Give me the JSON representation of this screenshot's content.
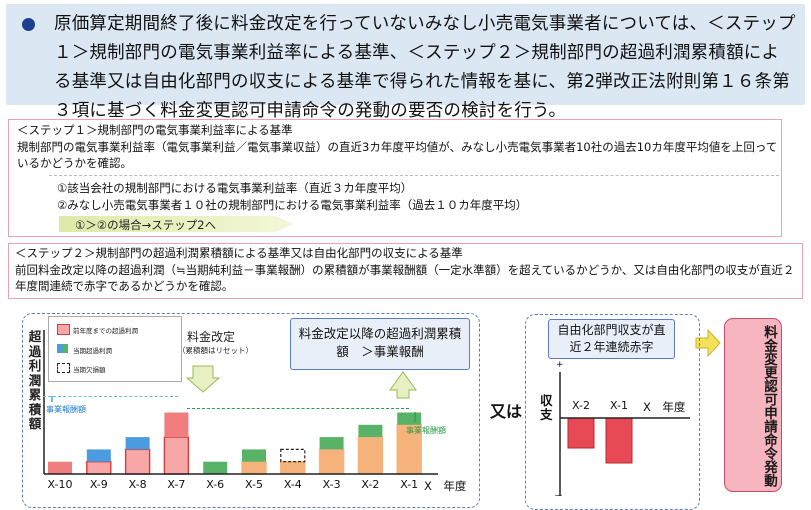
{
  "header": {
    "text": "原価算定期間終了後に料金改定を行っていないみなし小売電気事業者については、＜ステップ１＞規制部門の電気事業利益率による基準、＜ステップ２＞規制部門の超過利潤累積額による基準又は自由化部門の収支による基準で得られた情報を基に、第2弾改正法附則第１６条第３項に基づく料金変更認可申請命令の発動の要否の検討を行う。"
  },
  "step1": {
    "title": "＜ステップ１＞規制部門の電気事業利益率による基準",
    "desc": "規制部門の電気事業利益率（電気事業利益／電気事業収益）の直近3カ年度平均値が、みなし小売電気事業者10社の過去10カ年度平均値を上回っているかどうかを確認。",
    "item1": "①該当会社の規制部門における電気事業利益率（直近３カ年度平均）",
    "item2": "②みなし小売電気事業者１０社の規制部門における電気事業利益率（過去１０カ年度平均）",
    "arrow": "①＞②の場合→ステップ2へ"
  },
  "step2": {
    "title": "＜ステップ２＞規制部門の超過利潤累積額による基準又は自由化部門の収支による基準",
    "desc": "前回料金改定以降の超過利潤（≒当期純利益－事業報酬）の累積額が事業報酬額（一定水準額）を超えているかどうか、又は自由化部門の収支が直近２年度間連続で赤字であるかどうかを確認。"
  },
  "chart_left": {
    "ylabel": "超過利潤累積額",
    "legend": [
      "前年度までの超過利潤",
      "当期超過利潤",
      "当期欠損額"
    ],
    "reward_label_left": "事業報酬額",
    "reward_label_right": "事業報酬額",
    "revision_label": "料金改定",
    "revision_sub": "（累積額はリセット）",
    "callout": "料金改定以降の超過利潤累積額　＞事業報酬",
    "xaxis_suffix": "X　年度",
    "categories": [
      "X-10",
      "X-9",
      "X-8",
      "X-7",
      "X-6",
      "X-5",
      "X-4",
      "X-3",
      "X-2",
      "X-1"
    ]
  },
  "or_label": "又は",
  "chart_right": {
    "callout": "自由化部門収支が直近２年連続赤字",
    "ylabel": "収支",
    "plus": "+",
    "minus": "－",
    "categories": [
      "X-2",
      "X-1"
    ],
    "xaxis_suffix": "X　年度"
  },
  "result": "料金変更認可申請命令発動",
  "chart_data": [
    {
      "type": "bar",
      "categories": [
        "X-10",
        "X-9",
        "X-8",
        "X-7",
        "X-6",
        "X-5",
        "X-4",
        "X-3",
        "X-2",
        "X-1"
      ],
      "series": [
        {
          "name": "前年度までの超過利潤",
          "values": [
            0,
            1,
            2,
            3,
            0,
            1,
            1,
            2,
            3,
            4
          ]
        },
        {
          "name": "当期超過利潤",
          "values": [
            1,
            1,
            1,
            2,
            1,
            1,
            0,
            1,
            1,
            1
          ]
        },
        {
          "name": "当期欠損額",
          "values": [
            0,
            0,
            0,
            0,
            0,
            0,
            1,
            0,
            0,
            0
          ]
        }
      ],
      "ylabel": "超過利潤累積額",
      "colors": {
        "prior": "#f7a7a7",
        "prior_border": "#d43d3d",
        "current_red": "#f07e7e",
        "current_blue": "#4a9be0",
        "current_green": "#58b368",
        "orange": "#f6b27b"
      }
    },
    {
      "type": "bar",
      "categories": [
        "X-2",
        "X-1"
      ],
      "values": [
        -2,
        -3
      ],
      "ylabel": "収支",
      "colors": {
        "bar": "#e84a55"
      }
    }
  ]
}
